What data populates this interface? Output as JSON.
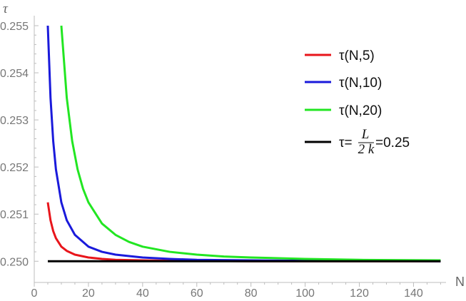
{
  "chart_data": {
    "type": "line",
    "xlabel": "N",
    "ylabel": "τ",
    "xlim": [
      0,
      152
    ],
    "ylim": [
      0.24955,
      0.255
    ],
    "x_ticks": [
      0,
      20,
      40,
      60,
      80,
      100,
      120,
      140
    ],
    "x_tick_labels": [
      "0",
      "20",
      "40",
      "60",
      "80",
      "100",
      "120",
      "140"
    ],
    "y_ticks": [
      0.25,
      0.251,
      0.252,
      0.253,
      0.254,
      0.255
    ],
    "y_tick_labels": [
      "0.250",
      "0.251",
      "0.252",
      "0.253",
      "0.254",
      "0.255"
    ],
    "grid": false,
    "legend_position": "top-right",
    "series": [
      {
        "name": "τ(N,5)",
        "color": "#e8151b",
        "x": [
          5,
          6,
          7,
          8,
          10,
          12,
          15,
          20,
          25,
          30,
          40,
          50,
          60,
          80,
          100,
          120,
          150
        ],
        "y": [
          0.25125,
          0.25087,
          0.25064,
          0.25049,
          0.25031,
          0.25022,
          0.25014,
          0.25008,
          0.25005,
          0.25003,
          0.25002,
          0.25001,
          0.25001,
          0.25,
          0.25,
          0.25,
          0.25
        ]
      },
      {
        "name": "τ(N,10)",
        "color": "#1a1adb",
        "x": [
          5,
          6,
          7,
          8,
          10,
          12,
          15,
          20,
          25,
          30,
          40,
          50,
          60,
          80,
          100,
          120,
          150
        ],
        "y": [
          0.255,
          0.25347,
          0.25255,
          0.25195,
          0.25125,
          0.25087,
          0.25056,
          0.25031,
          0.2502,
          0.25014,
          0.25008,
          0.25005,
          0.25003,
          0.25002,
          0.25001,
          0.25001,
          0.25
        ]
      },
      {
        "name": "τ(N,20)",
        "color": "#22e622",
        "x": [
          10,
          12,
          14,
          16,
          18,
          20,
          25,
          30,
          35,
          40,
          50,
          60,
          70,
          80,
          100,
          120,
          150
        ],
        "y": [
          0.255,
          0.25347,
          0.25255,
          0.25195,
          0.25154,
          0.25125,
          0.2508,
          0.25056,
          0.25041,
          0.25031,
          0.2502,
          0.25014,
          0.2501,
          0.25008,
          0.25005,
          0.25003,
          0.25002
        ]
      },
      {
        "name": "τ=L/(2k)=0.25",
        "color": "#000000",
        "x": [
          5,
          150
        ],
        "y": [
          0.25,
          0.25
        ]
      }
    ],
    "legend": [
      {
        "series": 0,
        "text": "τ(N,5)"
      },
      {
        "series": 1,
        "text": "τ(N,10)"
      },
      {
        "series": 2,
        "text": "τ(N,20)"
      },
      {
        "series": 3,
        "prefix": "τ=",
        "numerator": "L",
        "denominator": "2 k",
        "suffix": "=0.25"
      }
    ]
  }
}
